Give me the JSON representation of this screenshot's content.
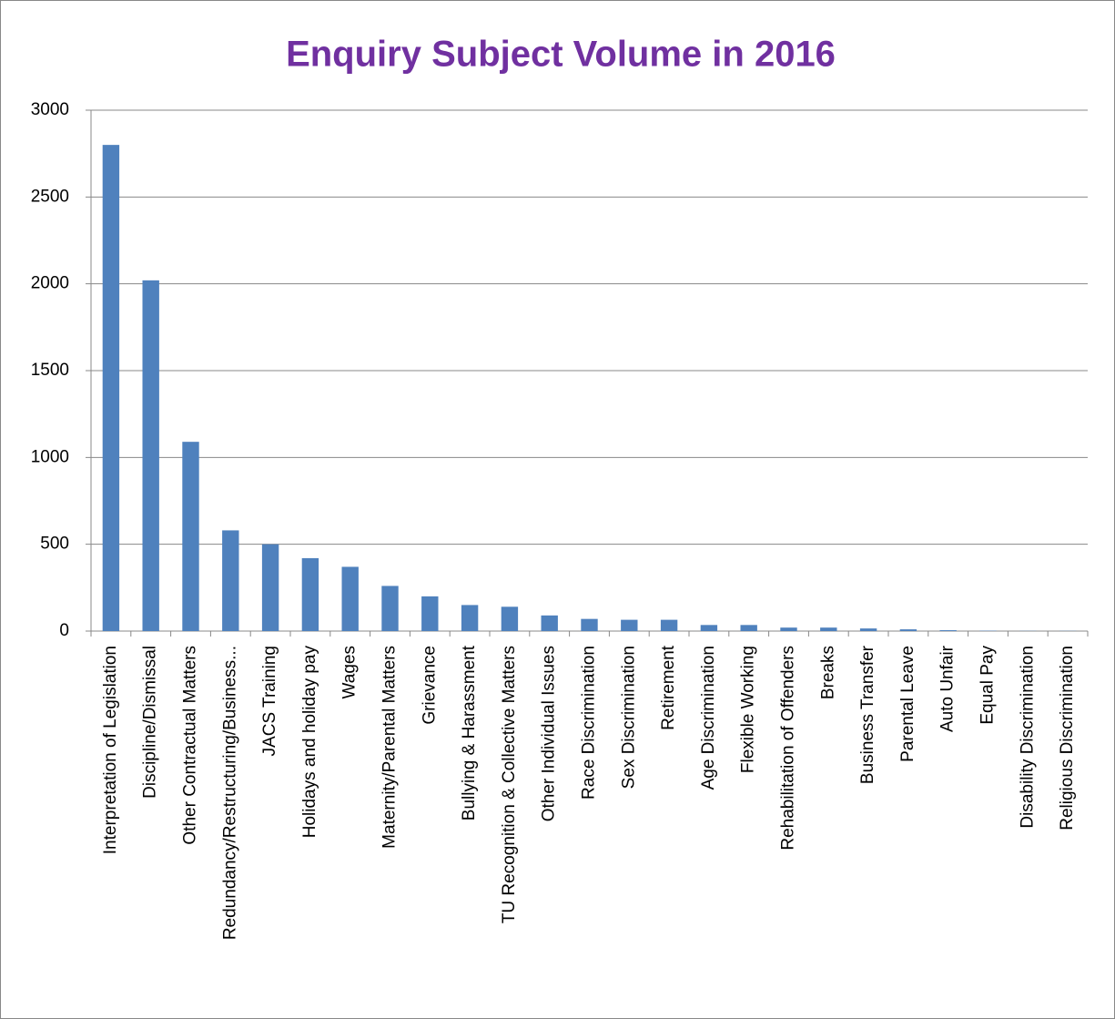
{
  "chart_data": {
    "type": "bar",
    "title": "Enquiry Subject Volume in 2016",
    "categories": [
      "Interpretation of Legislation",
      "Discipline/Dismissal",
      "Other Contractual Matters",
      "Redundancy/Restructuring/Business...",
      "JACS Training",
      "Holidays and holiday pay",
      "Wages",
      "Maternity/Parental Matters",
      "Grievance",
      "Bullying & Harassment",
      "TU Recognition & Collective Matters",
      "Other Individual Issues",
      "Race Discrimination",
      "Sex Discrimination",
      "Retirement",
      "Age Discrimination",
      "Flexible Working",
      "Rehabilitation of Offenders",
      "Breaks",
      "Business Transfer",
      "Parental Leave",
      "Auto Unfair",
      "Equal Pay",
      "Disability Discrimination",
      "Religious Discrimination"
    ],
    "values": [
      2800,
      2020,
      1090,
      580,
      500,
      420,
      370,
      260,
      200,
      150,
      140,
      90,
      70,
      65,
      65,
      35,
      35,
      20,
      20,
      15,
      10,
      5,
      2,
      1,
      1
    ],
    "color": "#4f81bd",
    "ylim": [
      0,
      3000
    ],
    "yticks": [
      0,
      500,
      1000,
      1500,
      2000,
      2500,
      3000
    ],
    "grid": true
  }
}
